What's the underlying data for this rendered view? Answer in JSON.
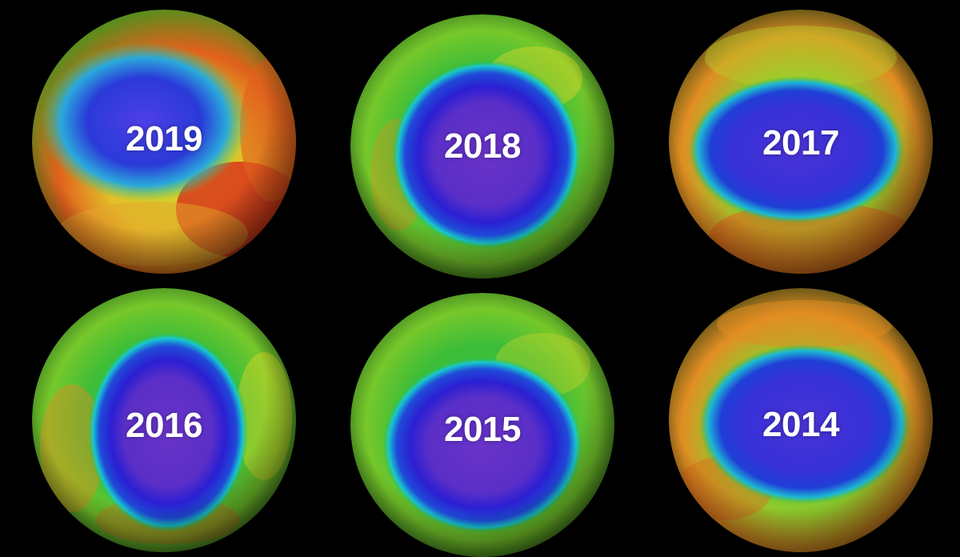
{
  "panels": [
    {
      "year": "2019"
    },
    {
      "year": "2018"
    },
    {
      "year": "2017"
    },
    {
      "year": "2016"
    },
    {
      "year": "2015"
    },
    {
      "year": "2014"
    }
  ],
  "colors": {
    "background": "#000000",
    "hole_deep": "#5a2fc8",
    "hole_blue": "#1f2ad6",
    "cyan": "#18c8d0",
    "green": "#2fbf3a",
    "yellow": "#d9d62b",
    "orange": "#e77a1e",
    "red": "#d8261a",
    "label": "#ffffff"
  }
}
